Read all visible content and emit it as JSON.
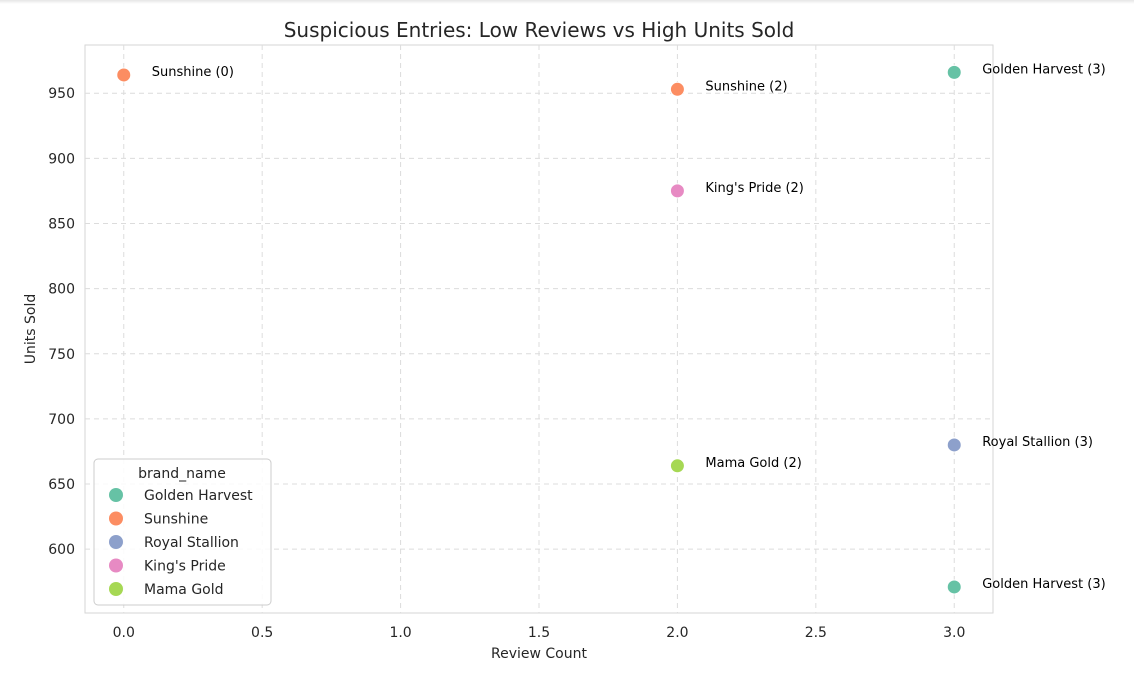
{
  "chart_data": {
    "type": "scatter",
    "title": "Suspicious Entries: Low Reviews vs High Units Sold",
    "xlabel": "Review Count",
    "ylabel": "Units Sold",
    "xlim": [
      -0.14,
      3.14
    ],
    "ylim": [
      551,
      987
    ],
    "xticks": [
      0.0,
      0.5,
      1.0,
      1.5,
      2.0,
      2.5,
      3.0
    ],
    "xtick_labels": [
      "0.0",
      "0.5",
      "1.0",
      "1.5",
      "2.0",
      "2.5",
      "3.0"
    ],
    "yticks": [
      600,
      650,
      700,
      750,
      800,
      850,
      900,
      950
    ],
    "ytick_labels": [
      "600",
      "650",
      "700",
      "750",
      "800",
      "850",
      "900",
      "950"
    ],
    "grid": true,
    "grid_style": "dashed",
    "legend": {
      "title": "brand_name",
      "placement": "lower-left"
    },
    "series": [
      {
        "name": "Golden Harvest",
        "color": "#66c2a5",
        "points": [
          {
            "x": 3,
            "y": 966,
            "label": "Golden Harvest (3)"
          },
          {
            "x": 3,
            "y": 571,
            "label": "Golden Harvest (3)"
          }
        ]
      },
      {
        "name": "Sunshine",
        "color": "#fc8d62",
        "points": [
          {
            "x": 0,
            "y": 964,
            "label": "Sunshine (0)"
          },
          {
            "x": 2,
            "y": 953,
            "label": "Sunshine (2)"
          }
        ]
      },
      {
        "name": "Royal Stallion",
        "color": "#8da0cb",
        "points": [
          {
            "x": 3,
            "y": 680,
            "label": "Royal Stallion (3)"
          }
        ]
      },
      {
        "name": "King's Pride",
        "color": "#e78ac3",
        "points": [
          {
            "x": 2,
            "y": 875,
            "label": "King's Pride (2)"
          }
        ]
      },
      {
        "name": "Mama Gold",
        "color": "#a6d854",
        "points": [
          {
            "x": 2,
            "y": 664,
            "label": "Mama Gold (2)"
          }
        ]
      }
    ]
  }
}
